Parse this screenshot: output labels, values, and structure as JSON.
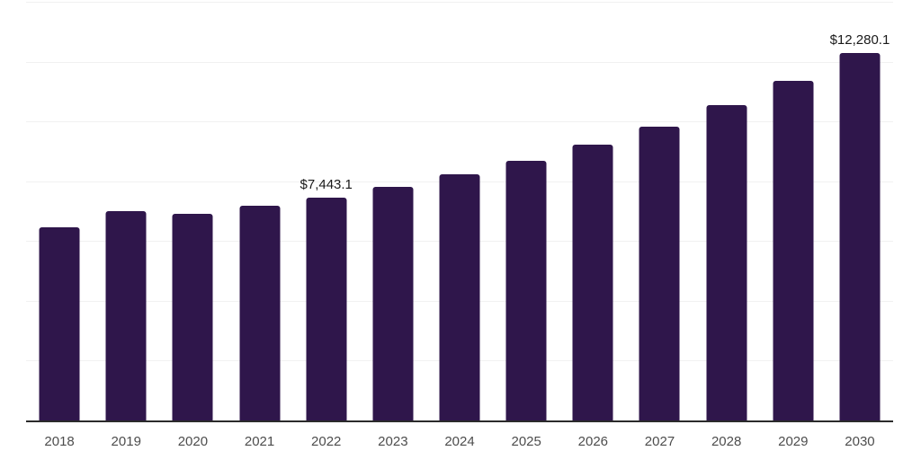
{
  "chart_data": {
    "type": "bar",
    "title": "",
    "xlabel": "",
    "ylabel": "",
    "categories": [
      "2018",
      "2019",
      "2020",
      "2021",
      "2022",
      "2023",
      "2024",
      "2025",
      "2026",
      "2027",
      "2028",
      "2029",
      "2030"
    ],
    "values": [
      6460,
      7000,
      6910,
      7190,
      7443.1,
      7820,
      8220,
      8670,
      9220,
      9820,
      10540,
      11350,
      12280.1
    ],
    "labeled_points": [
      {
        "category": "2022",
        "label": "$7,443.1"
      },
      {
        "category": "2030",
        "label": "$12,280.1"
      }
    ],
    "ylim": [
      0,
      14000
    ],
    "gridline_interval": 2000,
    "grid": true,
    "legend": false,
    "y_tick_labels_shown": false
  },
  "colors": {
    "bar": "#2f164b",
    "gridline": "#f1f1f1",
    "axis_line": "#2b2b2b",
    "x_tick_label": "#4d4d4d",
    "data_label": "#1a1a1a",
    "background": "#ffffff"
  }
}
